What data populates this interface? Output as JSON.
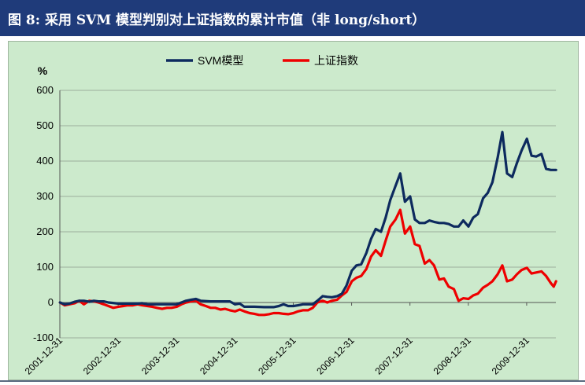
{
  "header": {
    "title": "图 8:  采用 SVM 模型判别对上证指数的累计市值（非 long/short）"
  },
  "colors": {
    "header_bg": "#1f3b7a",
    "chart_bg": "#cceacc",
    "svm_line": "#0d2a5e",
    "index_line": "#ee0000"
  },
  "chart_data": {
    "type": "line",
    "title": "",
    "ylabel": "%",
    "xlabel": "",
    "ylim": [
      -100,
      600
    ],
    "yticks": [
      -100,
      0,
      100,
      200,
      300,
      400,
      500,
      600
    ],
    "grid": true,
    "legend_position": "top-center",
    "x_tick_labels": [
      "2001-12-31",
      "2002-12-31",
      "2003-12-31",
      "2004-12-31",
      "2005-12-31",
      "2006-12-31",
      "2007-12-31",
      "2008-12-31",
      "2009-12-31"
    ],
    "x_range": [
      2001.917,
      2010.417
    ],
    "series": [
      {
        "name": "SVM模型",
        "color": "#0d2a5e",
        "points": [
          [
            2001.92,
            0
          ],
          [
            2002.0,
            -5
          ],
          [
            2002.08,
            -3
          ],
          [
            2002.17,
            2
          ],
          [
            2002.25,
            5
          ],
          [
            2002.33,
            5
          ],
          [
            2002.42,
            2
          ],
          [
            2002.5,
            5
          ],
          [
            2002.58,
            3
          ],
          [
            2002.67,
            3
          ],
          [
            2002.75,
            0
          ],
          [
            2002.92,
            -3
          ],
          [
            2003.08,
            -3
          ],
          [
            2003.25,
            -3
          ],
          [
            2003.33,
            -2
          ],
          [
            2003.42,
            -5
          ],
          [
            2003.58,
            -5
          ],
          [
            2003.75,
            -5
          ],
          [
            2003.92,
            -5
          ],
          [
            2004.0,
            0
          ],
          [
            2004.08,
            5
          ],
          [
            2004.17,
            8
          ],
          [
            2004.25,
            10
          ],
          [
            2004.33,
            5
          ],
          [
            2004.5,
            3
          ],
          [
            2004.75,
            3
          ],
          [
            2004.83,
            3
          ],
          [
            2004.92,
            -5
          ],
          [
            2005.0,
            -3
          ],
          [
            2005.08,
            -12
          ],
          [
            2005.25,
            -12
          ],
          [
            2005.42,
            -13
          ],
          [
            2005.58,
            -13
          ],
          [
            2005.67,
            -10
          ],
          [
            2005.75,
            -5
          ],
          [
            2005.83,
            -10
          ],
          [
            2005.92,
            -10
          ],
          [
            2006.0,
            -8
          ],
          [
            2006.08,
            -5
          ],
          [
            2006.17,
            -5
          ],
          [
            2006.25,
            -5
          ],
          [
            2006.33,
            5
          ],
          [
            2006.42,
            18
          ],
          [
            2006.5,
            16
          ],
          [
            2006.58,
            15
          ],
          [
            2006.67,
            18
          ],
          [
            2006.75,
            25
          ],
          [
            2006.83,
            48
          ],
          [
            2006.92,
            90
          ],
          [
            2007.0,
            105
          ],
          [
            2007.08,
            108
          ],
          [
            2007.17,
            140
          ],
          [
            2007.25,
            180
          ],
          [
            2007.33,
            208
          ],
          [
            2007.42,
            200
          ],
          [
            2007.5,
            240
          ],
          [
            2007.58,
            290
          ],
          [
            2007.67,
            330
          ],
          [
            2007.75,
            365
          ],
          [
            2007.83,
            285
          ],
          [
            2007.92,
            300
          ],
          [
            2008.0,
            235
          ],
          [
            2008.08,
            225
          ],
          [
            2008.17,
            225
          ],
          [
            2008.25,
            232
          ],
          [
            2008.33,
            228
          ],
          [
            2008.42,
            225
          ],
          [
            2008.5,
            225
          ],
          [
            2008.58,
            222
          ],
          [
            2008.67,
            215
          ],
          [
            2008.75,
            215
          ],
          [
            2008.83,
            232
          ],
          [
            2008.92,
            215
          ],
          [
            2009.0,
            240
          ],
          [
            2009.08,
            250
          ],
          [
            2009.17,
            295
          ],
          [
            2009.25,
            310
          ],
          [
            2009.33,
            340
          ],
          [
            2009.42,
            410
          ],
          [
            2009.5,
            482
          ],
          [
            2009.58,
            365
          ],
          [
            2009.67,
            355
          ],
          [
            2009.75,
            395
          ],
          [
            2009.83,
            430
          ],
          [
            2009.92,
            463
          ],
          [
            2010.0,
            415
          ],
          [
            2010.08,
            413
          ],
          [
            2010.17,
            420
          ],
          [
            2010.25,
            378
          ],
          [
            2010.33,
            375
          ],
          [
            2010.42,
            375
          ]
        ]
      },
      {
        "name": "上证指数",
        "color": "#ee0000",
        "points": [
          [
            2001.92,
            0
          ],
          [
            2002.0,
            -8
          ],
          [
            2002.08,
            -5
          ],
          [
            2002.17,
            -2
          ],
          [
            2002.25,
            5
          ],
          [
            2002.33,
            -5
          ],
          [
            2002.42,
            5
          ],
          [
            2002.5,
            3
          ],
          [
            2002.58,
            0
          ],
          [
            2002.67,
            -5
          ],
          [
            2002.75,
            -10
          ],
          [
            2002.83,
            -15
          ],
          [
            2002.92,
            -12
          ],
          [
            2003.0,
            -10
          ],
          [
            2003.08,
            -8
          ],
          [
            2003.17,
            -8
          ],
          [
            2003.25,
            -5
          ],
          [
            2003.33,
            -8
          ],
          [
            2003.42,
            -10
          ],
          [
            2003.5,
            -12
          ],
          [
            2003.58,
            -15
          ],
          [
            2003.67,
            -18
          ],
          [
            2003.75,
            -15
          ],
          [
            2003.83,
            -15
          ],
          [
            2003.92,
            -12
          ],
          [
            2004.0,
            -5
          ],
          [
            2004.08,
            0
          ],
          [
            2004.17,
            3
          ],
          [
            2004.25,
            5
          ],
          [
            2004.33,
            -5
          ],
          [
            2004.42,
            -10
          ],
          [
            2004.5,
            -15
          ],
          [
            2004.58,
            -15
          ],
          [
            2004.67,
            -20
          ],
          [
            2004.75,
            -18
          ],
          [
            2004.83,
            -22
          ],
          [
            2004.92,
            -25
          ],
          [
            2005.0,
            -20
          ],
          [
            2005.08,
            -25
          ],
          [
            2005.17,
            -30
          ],
          [
            2005.25,
            -32
          ],
          [
            2005.33,
            -35
          ],
          [
            2005.42,
            -35
          ],
          [
            2005.5,
            -33
          ],
          [
            2005.58,
            -30
          ],
          [
            2005.67,
            -30
          ],
          [
            2005.75,
            -32
          ],
          [
            2005.83,
            -33
          ],
          [
            2005.92,
            -30
          ],
          [
            2006.0,
            -25
          ],
          [
            2006.08,
            -22
          ],
          [
            2006.17,
            -22
          ],
          [
            2006.25,
            -15
          ],
          [
            2006.33,
            0
          ],
          [
            2006.42,
            5
          ],
          [
            2006.5,
            0
          ],
          [
            2006.58,
            5
          ],
          [
            2006.67,
            8
          ],
          [
            2006.75,
            20
          ],
          [
            2006.83,
            30
          ],
          [
            2006.92,
            60
          ],
          [
            2007.0,
            70
          ],
          [
            2007.08,
            75
          ],
          [
            2007.17,
            95
          ],
          [
            2007.25,
            130
          ],
          [
            2007.33,
            148
          ],
          [
            2007.42,
            132
          ],
          [
            2007.5,
            175
          ],
          [
            2007.58,
            215
          ],
          [
            2007.67,
            235
          ],
          [
            2007.75,
            262
          ],
          [
            2007.83,
            195
          ],
          [
            2007.92,
            215
          ],
          [
            2008.0,
            165
          ],
          [
            2008.08,
            160
          ],
          [
            2008.17,
            110
          ],
          [
            2008.25,
            120
          ],
          [
            2008.33,
            105
          ],
          [
            2008.42,
            65
          ],
          [
            2008.5,
            68
          ],
          [
            2008.58,
            45
          ],
          [
            2008.67,
            38
          ],
          [
            2008.75,
            5
          ],
          [
            2008.83,
            12
          ],
          [
            2008.92,
            10
          ],
          [
            2009.0,
            20
          ],
          [
            2009.08,
            25
          ],
          [
            2009.17,
            42
          ],
          [
            2009.25,
            50
          ],
          [
            2009.33,
            60
          ],
          [
            2009.42,
            80
          ],
          [
            2009.5,
            105
          ],
          [
            2009.58,
            60
          ],
          [
            2009.67,
            65
          ],
          [
            2009.75,
            80
          ],
          [
            2009.83,
            92
          ],
          [
            2009.92,
            98
          ],
          [
            2010.0,
            82
          ],
          [
            2010.08,
            85
          ],
          [
            2010.17,
            88
          ],
          [
            2010.25,
            75
          ],
          [
            2010.33,
            55
          ],
          [
            2010.38,
            45
          ],
          [
            2010.42,
            60
          ]
        ]
      }
    ]
  }
}
